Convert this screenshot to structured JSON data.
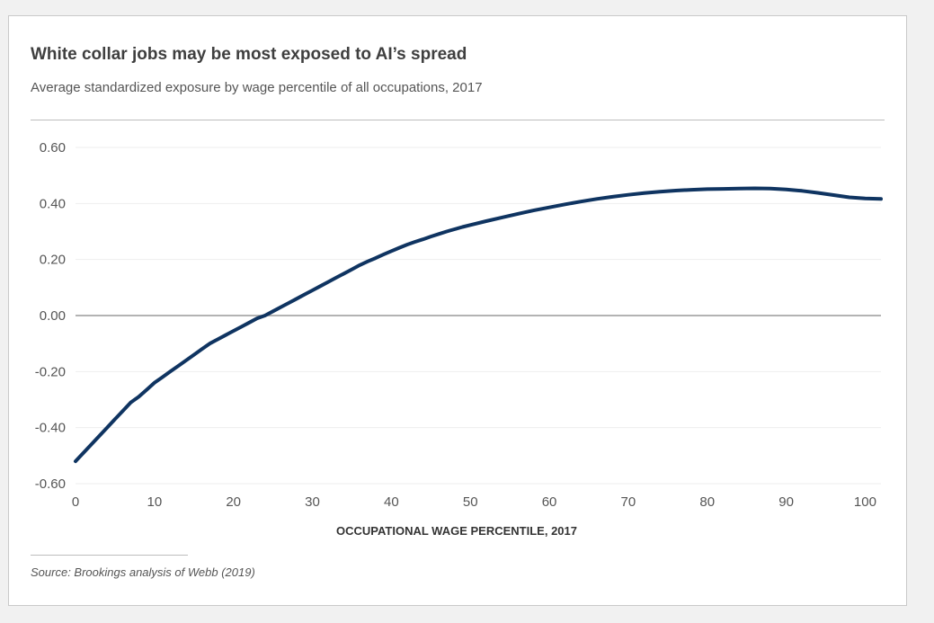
{
  "title": "White collar jobs may be most exposed to AI’s spread",
  "subtitle": "Average standardized exposure by wage percentile of all occupations, 2017",
  "source": "Source: Brookings analysis of Webb (2019)",
  "colors": {
    "line": "#0f3461",
    "zero_line": "#9a9a9a",
    "grid": "#eeeeee"
  },
  "chart_data": {
    "type": "line",
    "title": "White collar jobs may be most exposed to AI’s spread",
    "subtitle": "Average standardized exposure by wage percentile of all occupations, 2017",
    "xlabel": "OCCUPATIONAL WAGE PERCENTILE, 2017",
    "ylabel": "",
    "xlim": [
      0,
      102
    ],
    "ylim": [
      -0.6,
      0.6
    ],
    "x_ticks": [
      0,
      10,
      20,
      30,
      40,
      50,
      60,
      70,
      80,
      90,
      100
    ],
    "x_tick_labels": [
      "0",
      "10",
      "20",
      "30",
      "40",
      "50",
      "60",
      "70",
      "80",
      "90",
      "100"
    ],
    "y_ticks": [
      0.6,
      0.4,
      0.2,
      0.0,
      -0.2,
      -0.4,
      -0.6
    ],
    "y_tick_labels": [
      "0.60",
      "0.40",
      "0.20",
      "0.00",
      "-0.20",
      "-0.40",
      "-0.60"
    ],
    "grid": true,
    "series": [
      {
        "name": "Average standardized exposure",
        "x": [
          0,
          1,
          2,
          3,
          4,
          5,
          6,
          7,
          8,
          9,
          10,
          11,
          12,
          13,
          14,
          15,
          16,
          17,
          18,
          19,
          20,
          21,
          22,
          23,
          24,
          25,
          26,
          27,
          28,
          29,
          30,
          31,
          32,
          33,
          34,
          35,
          36,
          37,
          38,
          39,
          40,
          41,
          42,
          43,
          44,
          45,
          46,
          47,
          48,
          49,
          50,
          52,
          54,
          56,
          58,
          60,
          62,
          64,
          66,
          68,
          70,
          72,
          74,
          76,
          78,
          80,
          82,
          84,
          86,
          88,
          90,
          92,
          94,
          96,
          98,
          100,
          102
        ],
        "values": [
          -0.52,
          -0.49,
          -0.46,
          -0.43,
          -0.4,
          -0.37,
          -0.34,
          -0.31,
          -0.29,
          -0.265,
          -0.24,
          -0.22,
          -0.2,
          -0.18,
          -0.16,
          -0.14,
          -0.12,
          -0.1,
          -0.085,
          -0.07,
          -0.055,
          -0.04,
          -0.025,
          -0.01,
          0.0,
          0.015,
          0.03,
          0.045,
          0.06,
          0.075,
          0.09,
          0.105,
          0.12,
          0.135,
          0.15,
          0.165,
          0.18,
          0.193,
          0.205,
          0.218,
          0.23,
          0.242,
          0.253,
          0.263,
          0.272,
          0.282,
          0.291,
          0.3,
          0.308,
          0.316,
          0.323,
          0.337,
          0.35,
          0.363,
          0.375,
          0.386,
          0.397,
          0.407,
          0.416,
          0.424,
          0.431,
          0.437,
          0.442,
          0.446,
          0.449,
          0.451,
          0.452,
          0.453,
          0.454,
          0.453,
          0.45,
          0.445,
          0.438,
          0.43,
          0.422,
          0.418,
          0.416
        ]
      }
    ]
  }
}
